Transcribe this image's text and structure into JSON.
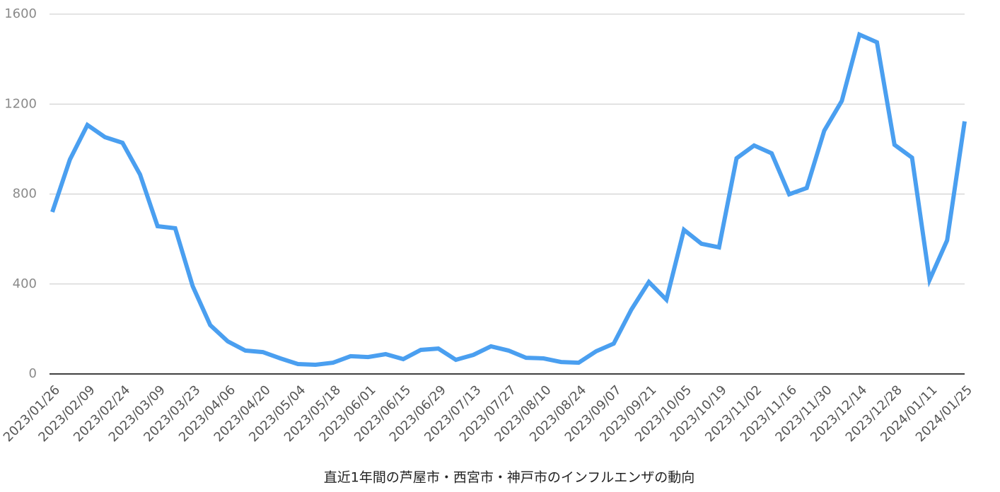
{
  "chart_data": {
    "type": "line",
    "title": "直近1年間の芦屋市・西宮市・神戸市のインフルエンザの動向",
    "categories": [
      "2023/01/26",
      null,
      "2023/02/09",
      null,
      "2023/02/24",
      null,
      "2023/03/09",
      null,
      "2023/03/23",
      null,
      "2023/04/06",
      null,
      "2023/04/20",
      null,
      "2023/05/04",
      null,
      "2023/05/18",
      null,
      "2023/06/01",
      null,
      "2023/06/15",
      null,
      "2023/06/29",
      null,
      "2023/07/13",
      null,
      "2023/07/27",
      null,
      "2023/08/10",
      null,
      "2023/08/24",
      null,
      "2023/09/07",
      null,
      "2023/09/21",
      null,
      "2023/10/05",
      null,
      "2023/10/19",
      null,
      "2023/11/02",
      null,
      "2023/11/16",
      null,
      "2023/11/30",
      null,
      "2023/12/14",
      null,
      "2023/12/28",
      null,
      "2024/01/11",
      null,
      "2024/01/25"
    ],
    "values": [
      720,
      953,
      1107,
      1053,
      1028,
      887,
      657,
      648,
      390,
      217,
      145,
      104,
      97,
      69,
      44,
      41,
      50,
      79,
      75,
      88,
      66,
      107,
      113,
      63,
      85,
      123,
      104,
      72,
      69,
      53,
      50,
      101,
      135,
      286,
      409,
      330,
      641,
      579,
      563,
      959,
      1016,
      981,
      799,
      827,
      1082,
      1214,
      1509,
      1475,
      1019,
      962,
      418,
      594,
      1123
    ],
    "color": "#4a9ff0",
    "ylim": [
      0,
      1600
    ],
    "yticks": [
      0,
      400,
      800,
      1200,
      1600
    ],
    "grid": true
  }
}
